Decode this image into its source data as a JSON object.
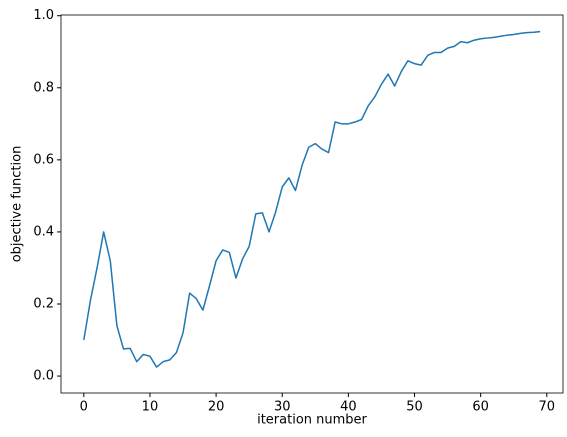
{
  "chart_data": {
    "type": "line",
    "xlabel": "iteration number",
    "ylabel": "objective function",
    "x": [
      0,
      1,
      2,
      3,
      4,
      5,
      6,
      7,
      8,
      9,
      10,
      11,
      12,
      13,
      14,
      15,
      16,
      17,
      18,
      19,
      20,
      21,
      22,
      23,
      24,
      25,
      26,
      27,
      28,
      29,
      30,
      31,
      32,
      33,
      34,
      35,
      36,
      37,
      38,
      39,
      40,
      41,
      42,
      43,
      44,
      45,
      46,
      47,
      48,
      49,
      50,
      51,
      52,
      53,
      54,
      55,
      56,
      57,
      58,
      59,
      60,
      61,
      62,
      63,
      64,
      65,
      66,
      67,
      68,
      69
    ],
    "series": [
      {
        "color": "#1f77b4",
        "values": [
          0.1,
          0.21,
          0.3,
          0.4,
          0.32,
          0.14,
          0.075,
          0.077,
          0.04,
          0.06,
          0.055,
          0.025,
          0.04,
          0.045,
          0.065,
          0.12,
          0.23,
          0.215,
          0.183,
          0.25,
          0.32,
          0.35,
          0.343,
          0.272,
          0.325,
          0.36,
          0.45,
          0.453,
          0.4,
          0.455,
          0.525,
          0.55,
          0.515,
          0.585,
          0.635,
          0.645,
          0.63,
          0.62,
          0.705,
          0.7,
          0.7,
          0.705,
          0.712,
          0.75,
          0.775,
          0.81,
          0.838,
          0.805,
          0.845,
          0.875,
          0.867,
          0.863,
          0.89,
          0.898,
          0.898,
          0.91,
          0.915,
          0.928,
          0.925,
          0.932,
          0.936,
          0.938,
          0.94,
          0.943,
          0.946,
          0.948,
          0.951,
          0.953,
          0.954,
          0.956
        ]
      }
    ],
    "xlim": [
      -3.45,
      72.45
    ],
    "ylim": [
      -0.047,
      1.002
    ],
    "xticks": [
      0,
      10,
      20,
      30,
      40,
      50,
      60,
      70
    ],
    "yticks": [
      {
        "value": 0,
        "label": "0.0"
      },
      {
        "value": 0.2,
        "label": "0.2"
      },
      {
        "value": 0.4,
        "label": "0.4"
      },
      {
        "value": 0.6,
        "label": "0.6"
      },
      {
        "value": 0.8,
        "label": "0.8"
      },
      {
        "value": 1,
        "label": "1.0"
      }
    ]
  }
}
